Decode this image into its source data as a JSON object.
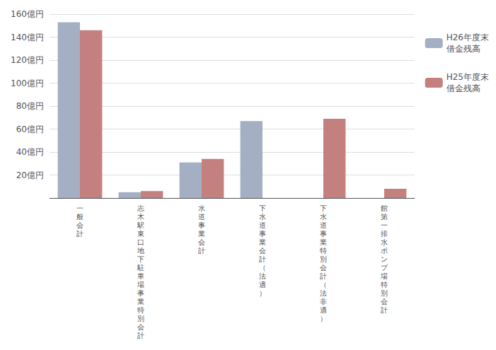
{
  "chart_data": {
    "type": "bar",
    "categories": [
      "一\n般\n会\n計",
      "志\n木\n駅\n東\n口\n地\n下\n駐\n車\n場\n事\n業\n特\n別\n会\n計",
      "水\n道\n事\n業\n会\n計",
      "下\n水\n道\n事\n業\n会\n計\n（\n法\n適\n）",
      "下\n水\n道\n事\n業\n特\n別\n会\n計\n（\n法\n非\n適\n）",
      "館\n第\n一\n排\n水\nポ\nン\nプ\n場\n特\n別\n会\n計"
    ],
    "series": [
      {
        "name": "H26年度末\n借金残高",
        "color": "#a4afc3",
        "values": [
          153,
          5,
          31,
          67,
          0,
          0
        ]
      },
      {
        "name": "H25年度末\n借金残高",
        "color": "#c47f7f",
        "values": [
          146,
          6,
          34,
          0,
          69,
          8
        ]
      }
    ],
    "ylim": [
      0,
      160
    ],
    "yticks": [
      {
        "value": 0,
        "label": null
      },
      {
        "value": 20,
        "label": "20億円"
      },
      {
        "value": 40,
        "label": "40億円"
      },
      {
        "value": 60,
        "label": "60億円"
      },
      {
        "value": 80,
        "label": "80億円"
      },
      {
        "value": 100,
        "label": "100億円"
      },
      {
        "value": 120,
        "label": "120億円"
      },
      {
        "value": 140,
        "label": "140億円"
      },
      {
        "value": 160,
        "label": "160億円"
      }
    ],
    "grid": true,
    "legend": "right"
  }
}
